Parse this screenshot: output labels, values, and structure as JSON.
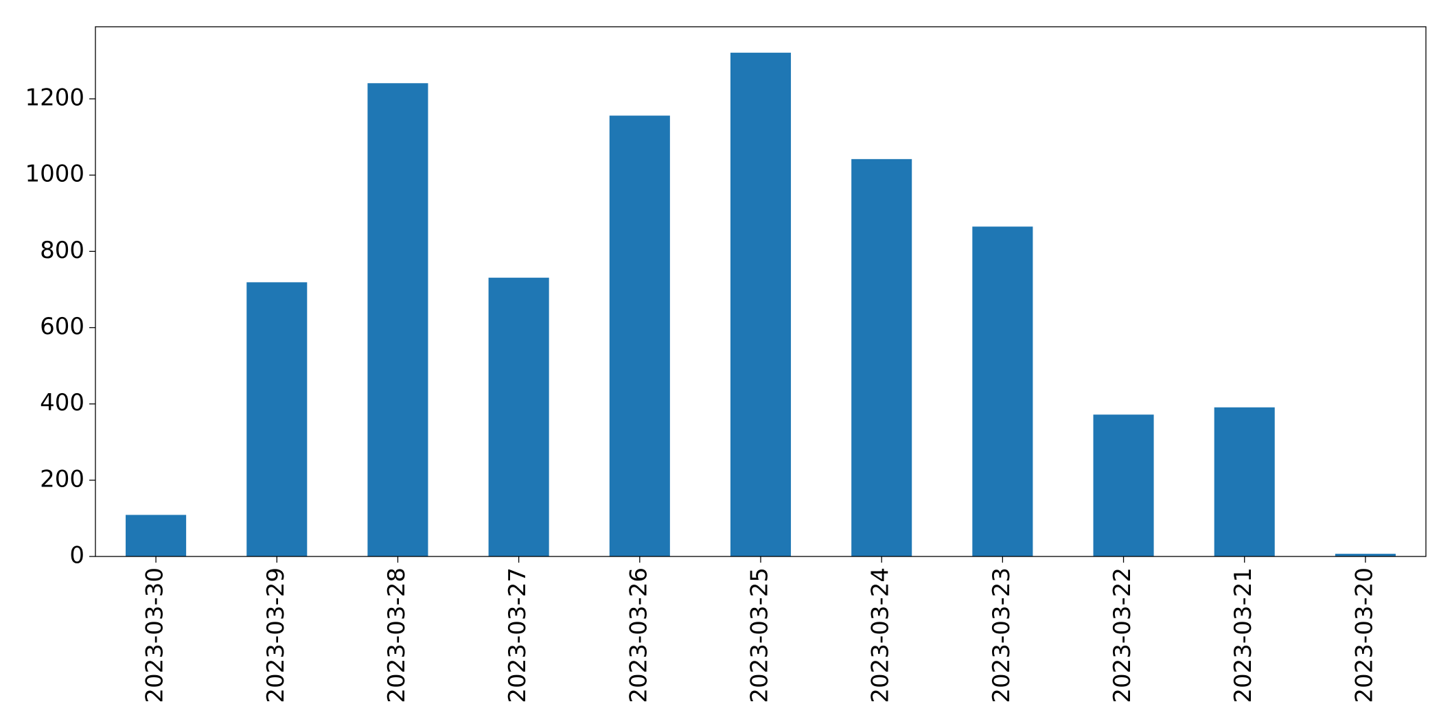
{
  "chart_data": {
    "type": "bar",
    "categories": [
      "2023-03-30",
      "2023-03-29",
      "2023-03-28",
      "2023-03-27",
      "2023-03-26",
      "2023-03-25",
      "2023-03-24",
      "2023-03-23",
      "2023-03-22",
      "2023-03-21",
      "2023-03-20"
    ],
    "values": [
      109,
      719,
      1241,
      731,
      1156,
      1321,
      1042,
      865,
      372,
      391,
      7
    ],
    "color": "#1f77b4",
    "ylim": [
      0,
      1389
    ],
    "yticks": [
      0,
      200,
      400,
      600,
      800,
      1000,
      1200
    ],
    "grid": false
  }
}
